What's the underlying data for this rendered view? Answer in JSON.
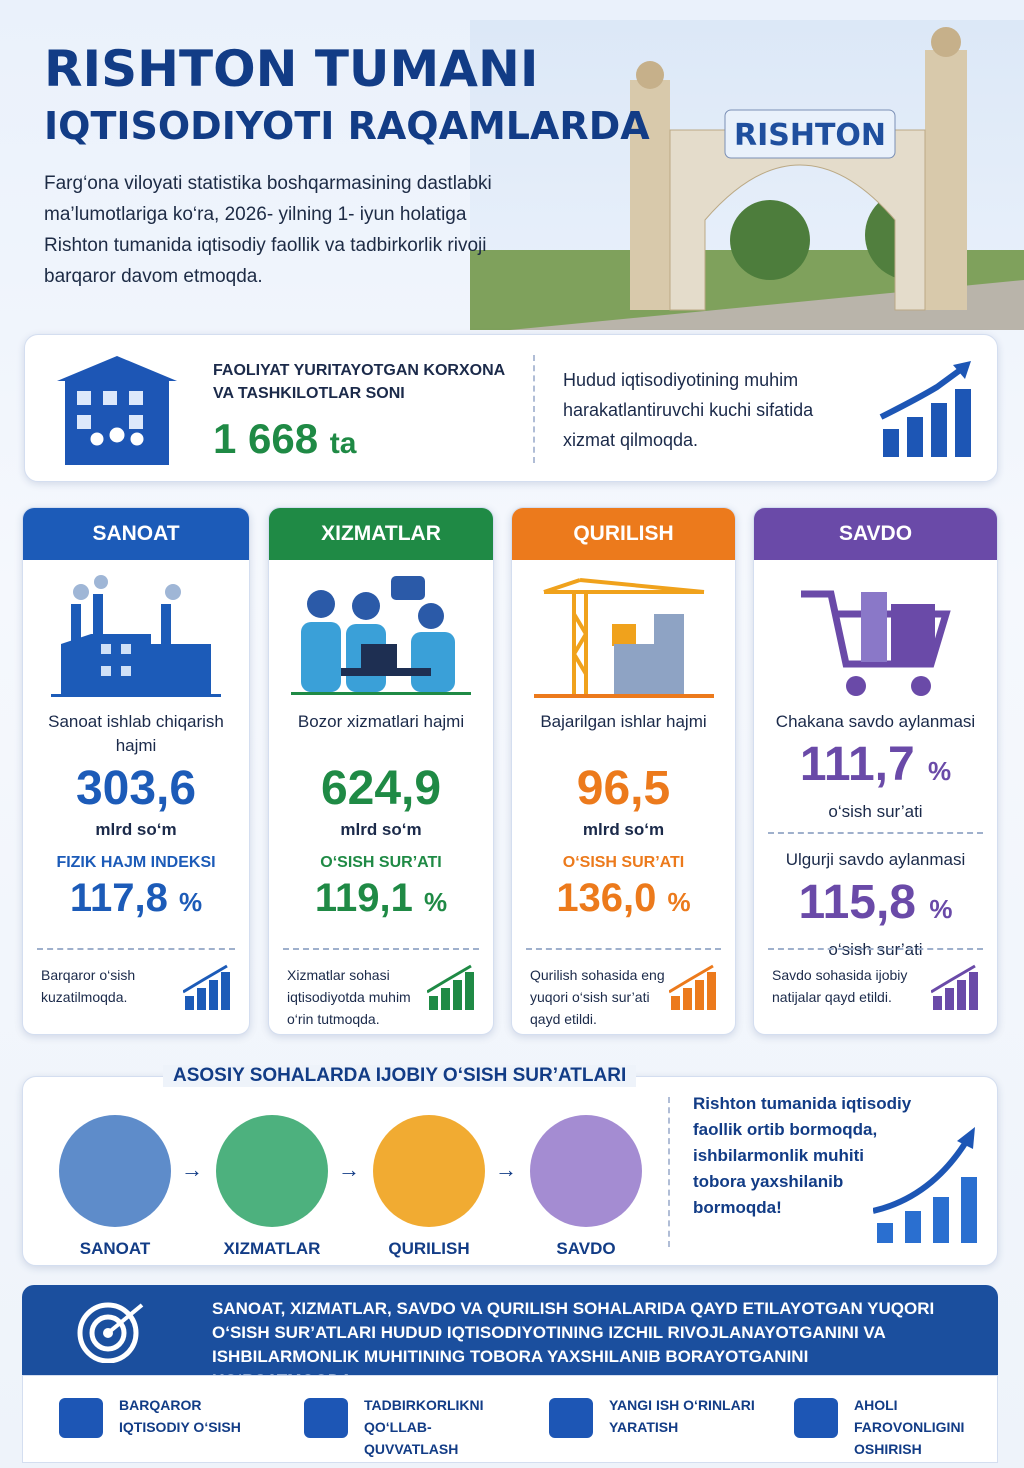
{
  "header": {
    "title_line1": "RISHTON TUMANI",
    "title_line2": "IQTISODIYOTI RAQAMLARDA",
    "intro": "Farg‘ona viloyati statistika boshqarmasining dastlabki ma’lumotlariga ko‘ra, 2026- yilning 1- iyun holatiga Rishton tumanida iqtisodiy faollik va tadbirkorlik rivoji barqaror davom etmoqda.",
    "gate_sign": "RISHTON"
  },
  "summary": {
    "label": "FAOLIYAT YURITAYOTGAN KORXONA VA TASHKILOTLAR SONI",
    "value": "1 668",
    "unit": "ta",
    "note": "Hudud iqtisodiyotining muhim harakatlantiruvchi kuchi sifatida xizmat qilmoqda."
  },
  "sectors": [
    {
      "name": "SANOAT",
      "color": "#1c5bb8",
      "metrics": [
        {
          "label": "Sanoat ishlab chiqarish hajmi",
          "value": "303,6",
          "unit": "mlrd so‘m"
        },
        {
          "label": "FIZIK HAJM INDEKSI",
          "value": "117,8",
          "unit": "%"
        }
      ],
      "note": "Barqaror o‘sish kuzatilmoqda."
    },
    {
      "name": "XIZMATLAR",
      "color": "#1f8a45",
      "metrics": [
        {
          "label": "Bozor xizmatlari hajmi",
          "value": "624,9",
          "unit": "mlrd so‘m"
        },
        {
          "label": "O‘SISH SUR’ATI",
          "value": "119,1",
          "unit": "%"
        }
      ],
      "note": "Xizmatlar sohasi iqtisodiyotda muhim o‘rin tutmoqda."
    },
    {
      "name": "QURILISH",
      "color": "#ec7a1c",
      "metrics": [
        {
          "label": "Bajarilgan ishlar hajmi",
          "value": "96,5",
          "unit": "mlrd so‘m"
        },
        {
          "label": "O‘SISH SUR’ATI",
          "value": "136,0",
          "unit": "%"
        }
      ],
      "note": "Qurilish sohasida eng yuqori o‘sish sur’ati qayd etildi."
    },
    {
      "name": "SAVDO",
      "color": "#6a4aa8",
      "metrics": [
        {
          "label": "Chakana savdo aylanmasi",
          "value": "111,7",
          "unit": "%",
          "caption": "o‘sish sur’ati"
        },
        {
          "label": "Ulgurji savdo aylanmasi",
          "value": "115,8",
          "unit": "%",
          "caption": "o‘sish sur’ati"
        }
      ],
      "note": "Savdo sohasida ijobiy natijalar qayd etildi."
    }
  ],
  "growth": {
    "title": "ASOSIY SOHALARDA IJOBIY O‘SISH SUR’ATLARI",
    "items": [
      "SANOAT",
      "XIZMATLAR",
      "QURILISH",
      "SAVDO"
    ],
    "note": "Rishton tumanida iqtisodiy faollik ortib bormoqda, ishbilarmonlik muhiti tobora yaxshilanib bormoqda!"
  },
  "banner": {
    "text": "SANOAT, XIZMATLAR, SAVDO VA QURILISH SOHALARIDA QAYD ETILAYOTGAN YUQORI O‘SISH SUR’ATLARI HUDUD IQTISODIYOTINING IZCHIL RIVOJLANAYOTGANINI VA ISHBILARMONLIK MUHITINING TOBORA YAXSHILANIB BORAYOTGANINI KO‘RSATMOQDA."
  },
  "pillars": [
    "BARQAROR IQTISODIY O‘SISH",
    "TADBIRKORLIKNI QO‘LLAB-QUVVATLASH",
    "YANGI ISH O‘RINLARI YARATISH",
    "AHOLI FAROVONLIGINI OSHIRISH"
  ]
}
